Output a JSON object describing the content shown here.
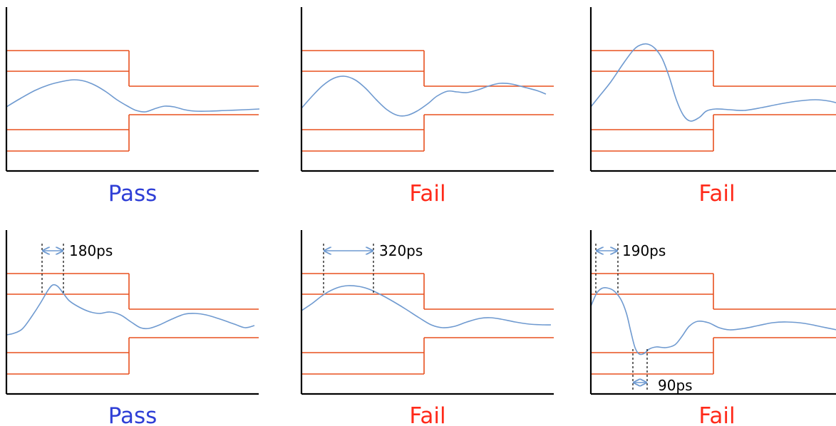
{
  "colors": {
    "axis": "#000000",
    "mask": "#E8501E",
    "waveform": "#6F9AD0",
    "pass": "#2F3FD6",
    "fail": "#FF2A1A",
    "dimension": "#6F9AD0",
    "dashed_guide": "#000000"
  },
  "panels": [
    {
      "verdict": "Pass",
      "verdict_type": "pass",
      "waveform": [
        [
          0,
          150
        ],
        [
          20,
          138
        ],
        [
          40,
          127
        ],
        [
          60,
          119
        ],
        [
          80,
          114
        ],
        [
          95,
          112
        ],
        [
          110,
          114
        ],
        [
          125,
          120
        ],
        [
          140,
          129
        ],
        [
          155,
          140
        ],
        [
          170,
          149
        ],
        [
          182,
          155
        ],
        [
          195,
          157
        ],
        [
          210,
          152
        ],
        [
          222,
          149
        ],
        [
          235,
          150
        ],
        [
          250,
          154
        ],
        [
          265,
          156
        ],
        [
          285,
          156
        ],
        [
          310,
          155
        ],
        [
          335,
          154
        ],
        [
          355,
          153
        ]
      ],
      "measurements": []
    },
    {
      "verdict": "Fail",
      "verdict_type": "fail",
      "waveform": [
        [
          0,
          152
        ],
        [
          15,
          135
        ],
        [
          30,
          120
        ],
        [
          45,
          110
        ],
        [
          60,
          107
        ],
        [
          75,
          112
        ],
        [
          90,
          124
        ],
        [
          105,
          140
        ],
        [
          120,
          154
        ],
        [
          135,
          162
        ],
        [
          148,
          162
        ],
        [
          162,
          156
        ],
        [
          178,
          145
        ],
        [
          190,
          135
        ],
        [
          205,
          128
        ],
        [
          218,
          129
        ],
        [
          232,
          130
        ],
        [
          248,
          126
        ],
        [
          262,
          121
        ],
        [
          278,
          117
        ],
        [
          295,
          118
        ],
        [
          315,
          123
        ],
        [
          330,
          127
        ],
        [
          343,
          132
        ]
      ],
      "measurements": []
    },
    {
      "verdict": "Fail",
      "verdict_type": "fail",
      "waveform": [
        [
          0,
          150
        ],
        [
          12,
          135
        ],
        [
          28,
          115
        ],
        [
          45,
          90
        ],
        [
          60,
          70
        ],
        [
          70,
          63
        ],
        [
          80,
          62
        ],
        [
          90,
          68
        ],
        [
          100,
          82
        ],
        [
          110,
          108
        ],
        [
          120,
          140
        ],
        [
          130,
          162
        ],
        [
          140,
          170
        ],
        [
          152,
          165
        ],
        [
          162,
          156
        ],
        [
          175,
          153
        ],
        [
          195,
          154
        ],
        [
          215,
          155
        ],
        [
          240,
          151
        ],
        [
          265,
          146
        ],
        [
          290,
          142
        ],
        [
          315,
          140
        ],
        [
          335,
          142
        ],
        [
          350,
          146
        ]
      ],
      "measurements": []
    },
    {
      "verdict": "Pass",
      "verdict_type": "pass",
      "waveform": [
        [
          0,
          470
        ],
        [
          10,
          468
        ],
        [
          22,
          462
        ],
        [
          35,
          445
        ],
        [
          48,
          425
        ],
        [
          58,
          408
        ],
        [
          65,
          400
        ],
        [
          72,
          402
        ],
        [
          80,
          412
        ],
        [
          88,
          422
        ],
        [
          100,
          430
        ],
        [
          115,
          437
        ],
        [
          130,
          440
        ],
        [
          145,
          438
        ],
        [
          160,
          442
        ],
        [
          175,
          452
        ],
        [
          188,
          460
        ],
        [
          200,
          461
        ],
        [
          215,
          456
        ],
        [
          232,
          448
        ],
        [
          250,
          441
        ],
        [
          265,
          440
        ],
        [
          280,
          442
        ],
        [
          300,
          448
        ],
        [
          320,
          455
        ],
        [
          335,
          460
        ],
        [
          348,
          457
        ]
      ],
      "measurements": [
        {
          "label": "180ps",
          "kind": "width"
        }
      ]
    },
    {
      "verdict": "Fail",
      "verdict_type": "fail",
      "waveform": [
        [
          0,
          436
        ],
        [
          15,
          426
        ],
        [
          32,
          413
        ],
        [
          50,
          404
        ],
        [
          65,
          401
        ],
        [
          80,
          402
        ],
        [
          95,
          406
        ],
        [
          112,
          414
        ],
        [
          130,
          424
        ],
        [
          148,
          435
        ],
        [
          165,
          446
        ],
        [
          182,
          456
        ],
        [
          198,
          460
        ],
        [
          215,
          458
        ],
        [
          232,
          452
        ],
        [
          250,
          447
        ],
        [
          265,
          446
        ],
        [
          280,
          448
        ],
        [
          300,
          452
        ],
        [
          320,
          455
        ],
        [
          340,
          456
        ],
        [
          350,
          456
        ]
      ],
      "measurements": [
        {
          "label": "320ps",
          "kind": "width"
        }
      ]
    },
    {
      "verdict": "Fail",
      "verdict_type": "fail",
      "waveform": [
        [
          0,
          430
        ],
        [
          8,
          412
        ],
        [
          15,
          405
        ],
        [
          22,
          404
        ],
        [
          32,
          408
        ],
        [
          42,
          420
        ],
        [
          50,
          440
        ],
        [
          56,
          465
        ],
        [
          62,
          488
        ],
        [
          68,
          497
        ],
        [
          75,
          496
        ],
        [
          82,
          490
        ],
        [
          92,
          487
        ],
        [
          105,
          488
        ],
        [
          118,
          484
        ],
        [
          128,
          472
        ],
        [
          138,
          458
        ],
        [
          150,
          451
        ],
        [
          165,
          453
        ],
        [
          180,
          460
        ],
        [
          195,
          463
        ],
        [
          215,
          461
        ],
        [
          235,
          457
        ],
        [
          255,
          453
        ],
        [
          275,
          452
        ],
        [
          300,
          454
        ],
        [
          325,
          459
        ],
        [
          345,
          463
        ]
      ],
      "measurements": [
        {
          "label": "190ps",
          "kind": "width"
        },
        {
          "label": "90ps",
          "kind": "width"
        }
      ]
    }
  ]
}
